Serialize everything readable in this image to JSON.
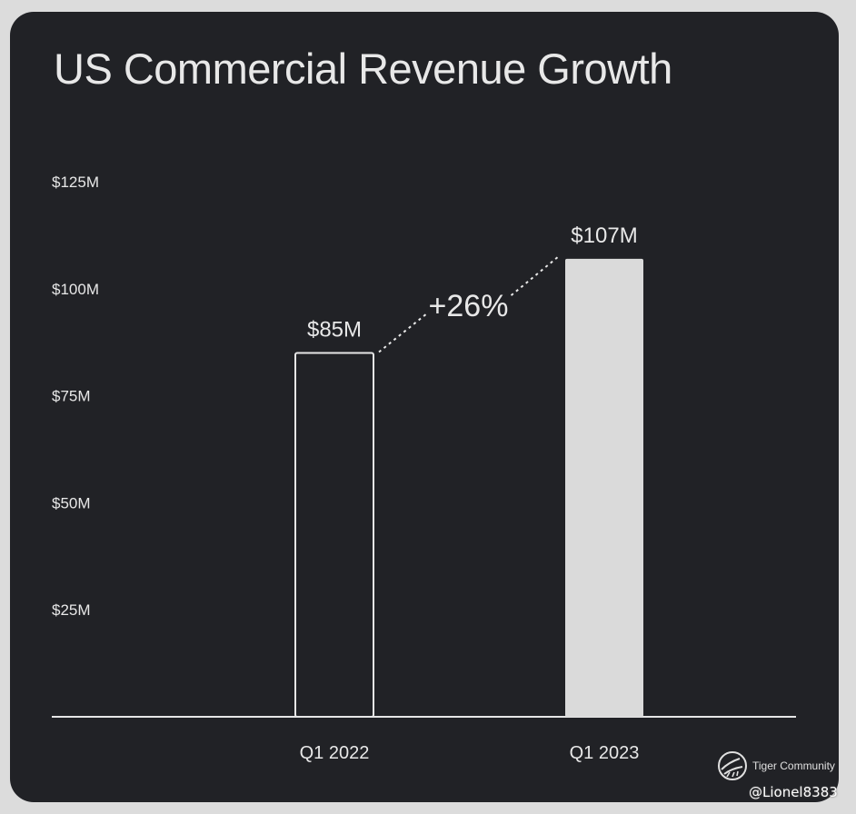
{
  "page": {
    "background": "#dcdcdc",
    "card_background": "#212226"
  },
  "chart_data": {
    "type": "bar",
    "title": "US Commercial Revenue Growth",
    "categories": [
      "Q1 2022",
      "Q1 2023"
    ],
    "values": [
      85,
      107
    ],
    "value_labels": [
      "$85M",
      "$107M"
    ],
    "bar_styles": [
      "outline",
      "filled"
    ],
    "unit": "$M",
    "ylim": [
      0,
      125
    ],
    "yticks": [
      25,
      50,
      75,
      100,
      125
    ],
    "ytick_labels": [
      "$25M",
      "$50M",
      "$75M",
      "$100M",
      "$125M"
    ],
    "xlabel": "",
    "ylabel": "",
    "grid": false,
    "annotation": {
      "text": "+26%",
      "from": "Q1 2022",
      "to": "Q1 2023",
      "style": "dashed-connector"
    },
    "colors": {
      "text": "#e8e8e8",
      "bar_fill": "#dadada",
      "bar_outline": "#e6e6e6",
      "axis": "#e6e6e6"
    }
  },
  "branding": {
    "name": "Tiger Community",
    "icon": "tiger-logo-icon",
    "watermark": "@Lionel8383"
  }
}
